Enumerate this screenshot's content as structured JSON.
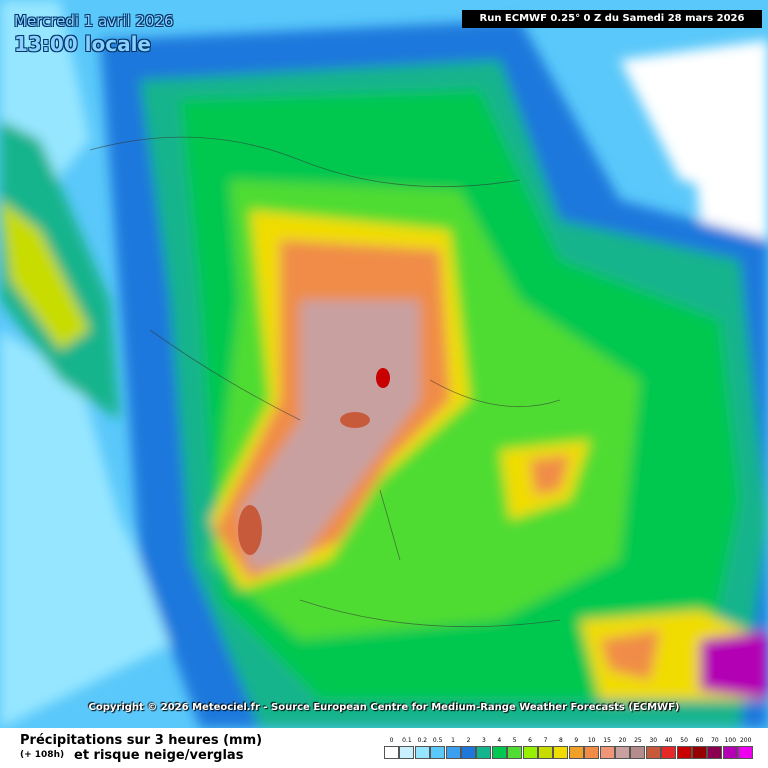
{
  "header": {
    "date": "Mercredi 1 avril 2026",
    "time": "13:00 locale",
    "run": "Run ECMWF 0.25° 0 Z du Samedi 28 mars 2026"
  },
  "copyright": "Copyright © 2026 Meteociel.fr - Source European Centre for Medium-Range Weather Forecasts (ECMWF)",
  "footer": {
    "title": "Précipitations sur 3 heures (mm)",
    "lead": "(+ 108h)",
    "subtitle": "et risque neige/verglas"
  },
  "legend": {
    "items": [
      {
        "label": "0",
        "color": "#ffffff"
      },
      {
        "label": "0.1",
        "color": "#c8f0ff"
      },
      {
        "label": "0.2",
        "color": "#96e6ff"
      },
      {
        "label": "0.5",
        "color": "#5ac8fa"
      },
      {
        "label": "1",
        "color": "#3ca0f0"
      },
      {
        "label": "2",
        "color": "#1e78dc"
      },
      {
        "label": "3",
        "color": "#14b48c"
      },
      {
        "label": "4",
        "color": "#00c850"
      },
      {
        "label": "5",
        "color": "#50dc32"
      },
      {
        "label": "6",
        "color": "#96f000"
      },
      {
        "label": "7",
        "color": "#c8dc00"
      },
      {
        "label": "8",
        "color": "#f0dc00"
      },
      {
        "label": "9",
        "color": "#f0a028"
      },
      {
        "label": "10",
        "color": "#f08c46"
      },
      {
        "label": "15",
        "color": "#f09678"
      },
      {
        "label": "20",
        "color": "#c8a0a0"
      },
      {
        "label": "25",
        "color": "#b48c8c"
      },
      {
        "label": "30",
        "color": "#c85a3c"
      },
      {
        "label": "40",
        "color": "#e62828"
      },
      {
        "label": "50",
        "color": "#c80000"
      },
      {
        "label": "60",
        "color": "#960000"
      },
      {
        "label": "70",
        "color": "#8c0050"
      },
      {
        "label": "100",
        "color": "#b400b4"
      },
      {
        "label": "200",
        "color": "#f000f0"
      }
    ]
  }
}
